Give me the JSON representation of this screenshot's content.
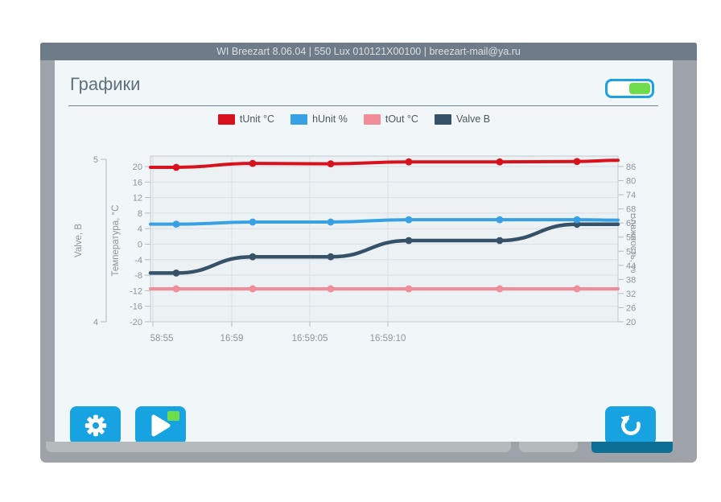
{
  "window": {
    "header_title": "WI Breezart 8.06.04 | 550 Lux 010121X00100 | breezart-mail@ya.ru"
  },
  "page": {
    "title": "Графики",
    "toggle_state": "on"
  },
  "icons": {
    "settings_button": "gear-icon",
    "start_button": "play-icon",
    "start_indicator": "green-square",
    "reload_button": "rotate-ccw-icon",
    "toggle": "toggle-on"
  },
  "colors": {
    "accent_blue": "#17a2e1",
    "toggle_green": "#6fdd4b",
    "toggle_border": "#1da1e2",
    "frame_gray": "#9da3a8",
    "header_slate": "#6e7c89",
    "card_bg": "#f1f6f9",
    "footer_primary_blue": "#0d6e96"
  },
  "chart_data": {
    "type": "line",
    "title": "",
    "grid": true,
    "legend_position": "top",
    "x_tick_labels": [
      "58:55",
      "16:59",
      "16:59:05",
      "16:59:10"
    ],
    "axes": {
      "valve": {
        "label": "Valve, B",
        "side": "outer-left",
        "ticks": [
          5,
          4
        ],
        "range": [
          4,
          5
        ]
      },
      "temperature": {
        "label": "Температура, °C",
        "side": "left",
        "ticks": [
          20,
          16,
          12,
          8,
          4,
          0,
          -4,
          -8,
          -12,
          -16,
          -20
        ],
        "range": [
          -20,
          20
        ]
      },
      "humidity": {
        "label": "Влажность, %",
        "side": "right",
        "ticks": [
          86,
          80,
          74,
          68,
          62,
          56,
          50,
          44,
          38,
          32,
          26,
          20
        ],
        "range": [
          20,
          86
        ]
      }
    },
    "series": [
      {
        "name": "tOut °C",
        "color": "#f08d98",
        "axis": "temperature",
        "values": [
          -11.5,
          -11.5,
          -11.5,
          -11.5,
          -11.5,
          -11.5
        ],
        "edge_end": -11.5
      },
      {
        "name": "Valve B",
        "color": "#365269",
        "axis": "valve",
        "values": [
          4.3,
          4.4,
          4.4,
          4.5,
          4.5,
          4.6
        ],
        "edge_end": 4.6
      },
      {
        "name": "hUnit %",
        "color": "#38a1e4",
        "axis": "humidity",
        "values": [
          61.5,
          62.4,
          62.4,
          63.4,
          63.4,
          63.4
        ],
        "edge_end": 63.2
      },
      {
        "name": "tUnit °C",
        "color": "#d8121d",
        "axis": "temperature",
        "values": [
          19.8,
          20.8,
          20.7,
          21.2,
          21.2,
          21.3
        ],
        "edge_end": 21.6
      }
    ],
    "legend_order": [
      "tUnit °C",
      "hUnit %",
      "tOut °C",
      "Valve B"
    ]
  }
}
